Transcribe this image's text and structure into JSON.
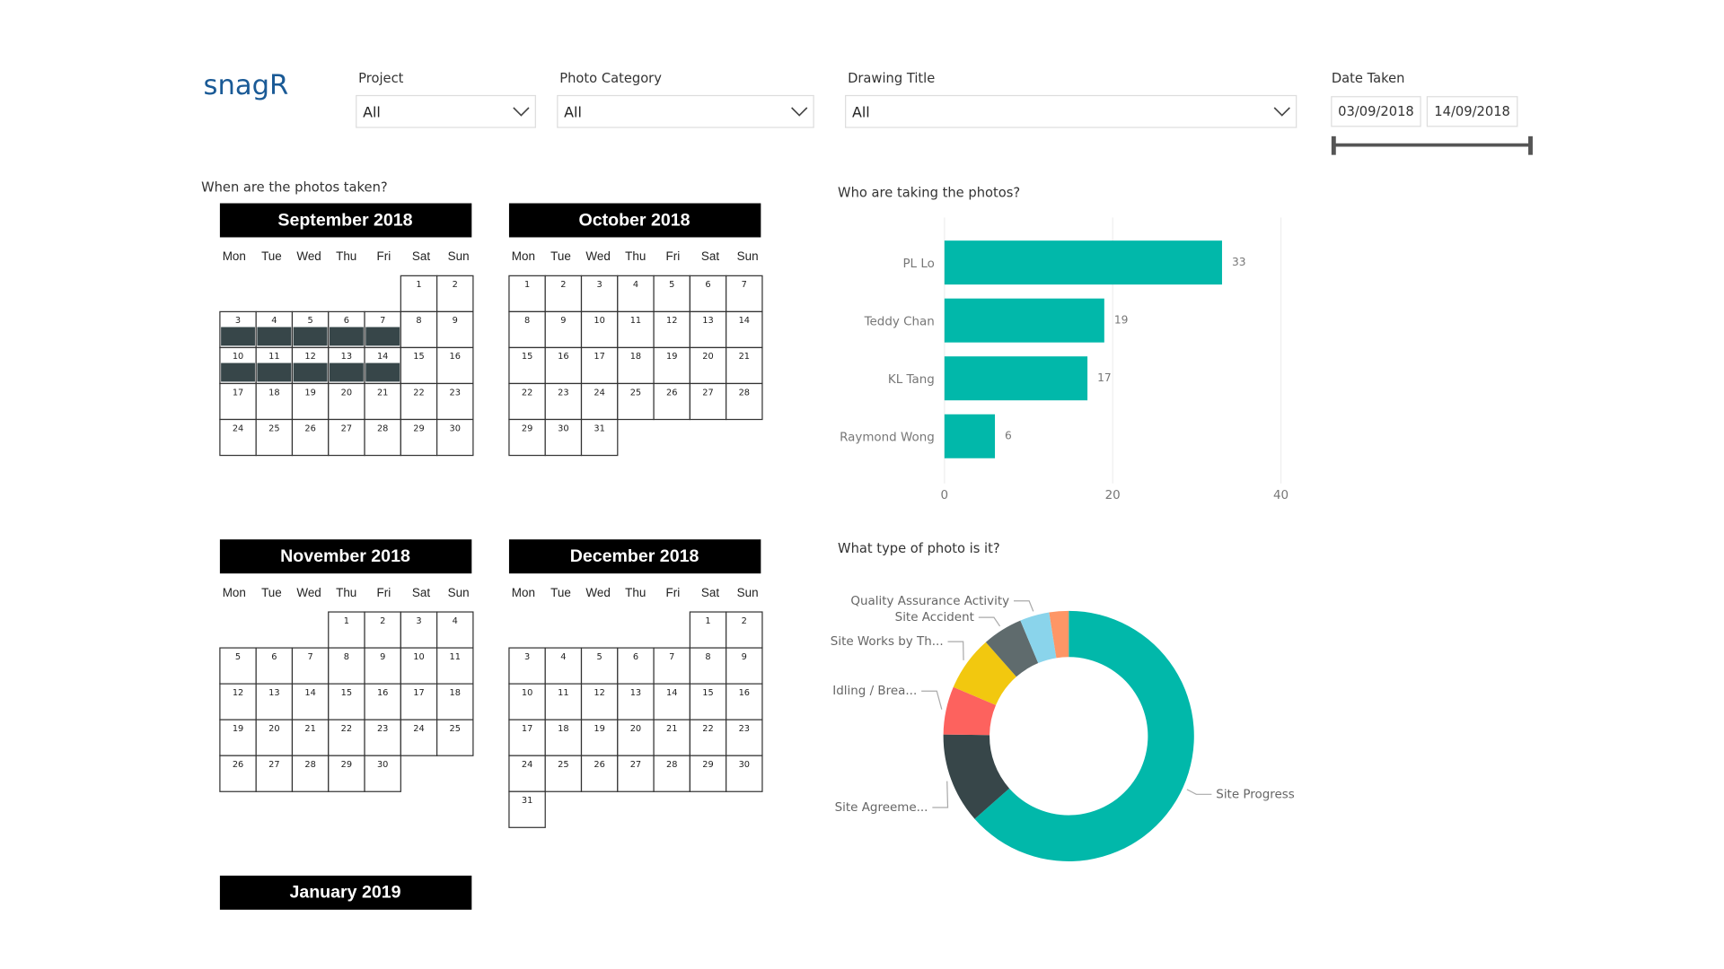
{
  "logo": "snagR",
  "filters": [
    {
      "label": "Project",
      "value": "All"
    },
    {
      "label": "Photo Category",
      "value": "All"
    },
    {
      "label": "Drawing Title",
      "value": "All"
    }
  ],
  "date_filter": {
    "label": "Date Taken",
    "from": "03/09/2018",
    "to": "14/09/2018"
  },
  "calendar": {
    "title": "When are the photos taken?",
    "weekdays": [
      "Mon",
      "Tue",
      "Wed",
      "Thu",
      "Fri",
      "Sat",
      "Sun"
    ],
    "months": [
      {
        "title": "September 2018",
        "photo_days": [
          3,
          4,
          5,
          6,
          7,
          10,
          11,
          12,
          13,
          14
        ],
        "weeks": [
          [
            null,
            null,
            null,
            null,
            null,
            1,
            2
          ],
          [
            3,
            4,
            5,
            6,
            7,
            8,
            9
          ],
          [
            10,
            11,
            12,
            13,
            14,
            15,
            16
          ],
          [
            17,
            18,
            19,
            20,
            21,
            22,
            23
          ],
          [
            24,
            25,
            26,
            27,
            28,
            29,
            30
          ]
        ]
      },
      {
        "title": "October 2018",
        "photo_days": [],
        "weeks": [
          [
            1,
            2,
            3,
            4,
            5,
            6,
            7
          ],
          [
            8,
            9,
            10,
            11,
            12,
            13,
            14
          ],
          [
            15,
            16,
            17,
            18,
            19,
            20,
            21
          ],
          [
            22,
            23,
            24,
            25,
            26,
            27,
            28
          ],
          [
            29,
            30,
            31
          ]
        ]
      },
      {
        "title": "November 2018",
        "photo_days": [],
        "weeks": [
          [
            null,
            null,
            null,
            1,
            2,
            3,
            4
          ],
          [
            5,
            6,
            7,
            8,
            9,
            10,
            11
          ],
          [
            12,
            13,
            14,
            15,
            16,
            17,
            18
          ],
          [
            19,
            20,
            21,
            22,
            23,
            24,
            25
          ],
          [
            26,
            27,
            28,
            29,
            30
          ]
        ]
      },
      {
        "title": "December 2018",
        "photo_days": [],
        "weeks": [
          [
            null,
            null,
            null,
            null,
            null,
            1,
            2
          ],
          [
            3,
            4,
            5,
            6,
            7,
            8,
            9
          ],
          [
            10,
            11,
            12,
            13,
            14,
            15,
            16
          ],
          [
            17,
            18,
            19,
            20,
            21,
            22,
            23
          ],
          [
            24,
            25,
            26,
            27,
            28,
            29,
            30
          ],
          [
            31
          ]
        ]
      },
      {
        "title": "January 2019",
        "photo_days": [],
        "weeks": []
      }
    ]
  },
  "chart_data": [
    {
      "type": "hbar",
      "title": "Who are taking the photos?",
      "categories": [
        "PL Lo",
        "Teddy Chan",
        "KL Tang",
        "Raymond Wong"
      ],
      "values": [
        33,
        19,
        17,
        6
      ],
      "color": "#01b8aa",
      "xlim": [
        0,
        40
      ],
      "xticks": [
        0,
        20,
        40
      ],
      "grid": true
    },
    {
      "type": "donut",
      "title": "What type of photo is it?",
      "categories": [
        "Site Progress",
        "Site Agreeme...",
        "Idling / Brea...",
        "Site Works by Th...",
        "Site Accident",
        "Quality Assurance Activity",
        null
      ],
      "values": [
        63.5,
        11.7,
        6.2,
        7.1,
        5.2,
        3.8,
        2.5
      ],
      "colors": [
        "#01b8aa",
        "#374649",
        "#fd625e",
        "#f2c80f",
        "#5f6b6d",
        "#8ad4eb",
        "#fe9666"
      ]
    }
  ]
}
